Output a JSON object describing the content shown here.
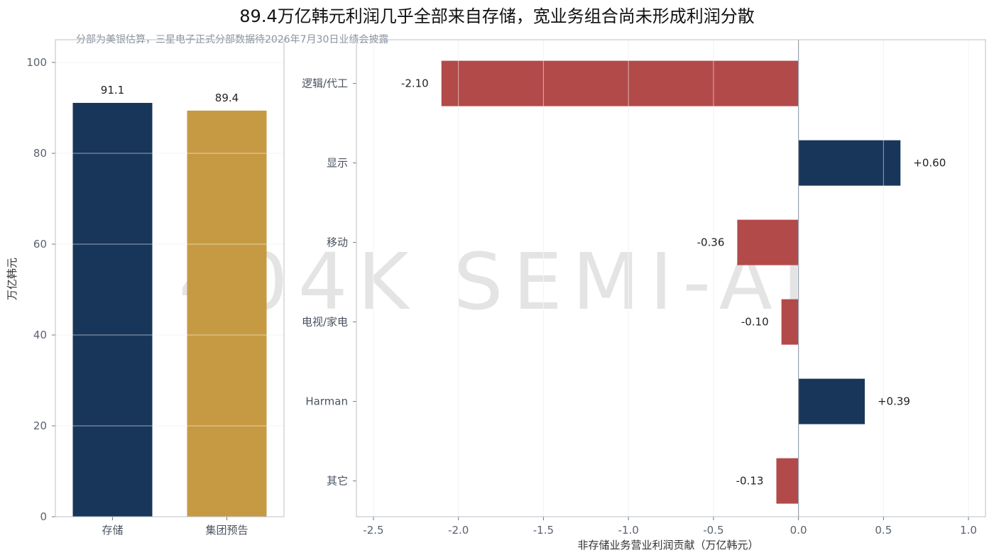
{
  "title": "89.4万亿韩元利润几乎全部来自存储，宽业务组合尚未形成利润分散",
  "subtitle": "分部为美银估算，三星电子正式分部数据待2026年7月30日业绩会披露",
  "watermark": "404K SEMI-AI",
  "colors": {
    "navy": "#18365a",
    "gold": "#c69a43",
    "red": "#b24a4a",
    "grid": "#e6e8ec",
    "frame": "#b9bfc8"
  },
  "chart_data": [
    {
      "type": "bar",
      "categories": [
        "存储",
        "集团预告"
      ],
      "values": [
        91.1,
        89.4
      ],
      "value_labels": [
        "91.1",
        "89.4"
      ],
      "bar_colors": [
        "navy",
        "gold"
      ],
      "ylabel": "万亿韩元",
      "xlabel": "",
      "ylim": [
        0,
        105
      ],
      "yticks": [
        0,
        20,
        40,
        60,
        80,
        100
      ],
      "grid": true
    },
    {
      "type": "bar",
      "orientation": "horizontal",
      "categories": [
        "逻辑/代工",
        "显示",
        "移动",
        "电视/家电",
        "Harman",
        "其它"
      ],
      "values": [
        -2.1,
        0.6,
        -0.36,
        -0.1,
        0.39,
        -0.13
      ],
      "value_labels": [
        "-2.10",
        "+0.60",
        "-0.36",
        "-0.10",
        "+0.39",
        "-0.13"
      ],
      "xlabel": "非存储业务营业利润贡献（万亿韩元）",
      "xlim": [
        -2.6,
        1.1
      ],
      "xticks": [
        -2.5,
        -2.0,
        -1.5,
        -1.0,
        -0.5,
        0.0,
        0.5,
        1.0
      ],
      "xtick_labels": [
        "-2.5",
        "-2.0",
        "-1.5",
        "-1.0",
        "-0.5",
        "0.0",
        "0.5",
        "1.0"
      ],
      "positive_color": "navy",
      "negative_color": "red",
      "grid": true
    }
  ]
}
